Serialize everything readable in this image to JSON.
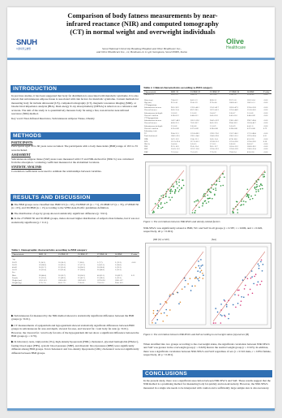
{
  "title": "Comparison of body fatness measurements by near-infrared reactance (NIR) and computed tomography (CT) in normal weight and overweight individuals",
  "affiliations": [
    "Seoul National University Bundang Hospital and Olive Healthcare Inc.,",
    "and Olive Healthcare Inc., 12, Bonhwan-ro 11-gil, Seongnam, Seoul 00000, Korea"
  ],
  "logos": {
    "left": {
      "text": "SNUH",
      "sub": "서울대학교병원"
    },
    "right": {
      "text": "Olive",
      "sub": "Healthcare"
    }
  },
  "colors": {
    "header": "#2f6fb3",
    "bar": "#6da0cf",
    "accent_green": "#3a9a48",
    "accent_blue": "#1d4f9c"
  },
  "sections": {
    "introduction": {
      "heading": "INTRODUCTION",
      "body": "In previous studies, it has been suggested that body fat distribution is associated with metabolic syndrome. It is also known that subcutaneous adipose tissue is associated with risk factors for metabolic syndrome. Current methods for measuring body fat include ultrasound (US), computed tomography (CT), magnetic resonance imaging (MRI), or bioelectrical impedance analysis (BIA). Dual energy X-ray absorptiometry (DEXA) is relied on as a reference and accurate. The aim of the study is to quantitatively measure body fat using a fast, non-invasive near-infrared reactance (NIR) method.",
      "keywords": "Key word: Near-Infrared Reactance, Subcutaneous Adipose Tissue, Obesity"
    },
    "methods": {
      "heading": "METHODS",
      "participants_title": "PARTICIPANTS",
      "participants": "Participants aged 20 to 60 years were recruited. The participants with a body mass index (BMI) range of 18.5 to 35 were included.",
      "assessment_title": "ASSESSMENT",
      "assessment": "Subcutaneous adipose tissue (SAT) areas were measured with CT and NIR-derived fat (NIR-%) was calculated from the absorption / scattering coefficient measured at the abdominal locations.",
      "statistics_title": "STATISTIC ANALYSIS",
      "statistics": "Correlation coefficients were used to estimate the relationships between variables."
    },
    "results": {
      "heading": "RESULTS AND DISCUSSION",
      "bullet1": "The BMI groups were classified into BMI<23 (n = 63), 23≤BMI<25 (n = 71), 25≤BMI<27 (n = 70), 27≤BMI<30 (n = 65), and 30≤BMI (n = 15) according to the WHO Asia-Pacific guidelines definition.",
      "bullet2": "The distribution of age by group showed statistically significant difference (p <0.01).",
      "bullet3": "In the 27≤BMI<30 and 30≤BMI groups, males showed higher distribution of subjects than females, but it was not statistically significant (p > 0.11).",
      "table1_caption": "Table 1. Demographic characteristics according to BMI category",
      "bullet4": "Subcutaneous fat measured by the NIR method showed a statistically significant difference between the BMI groups (p <0.01).",
      "bullet5": "CT measurements of epigastrium and hypogastrium showed statistically significant differences between BMI groups in subcutaneous fat area and depth, visceral fat area, and visceral fat / total body fat ratio (p <0.01). However, the visceral fat / total body fat ratio of the hypogastrium did not show a significant difference between the BMI groups (p = 0.79).",
      "bullet6": "In laboratory tests, triglyceride (TG), high-density lipoprotein (HDL) cholesterol, glycated hemoglobin (HbA1c), fasting blood sugar (FBS), systolic blood pressure (SBP), and diastolic blood pressure (DBP) were significantly different among BMI groups. Total cholesterol and low-density lipoprotein (LDL) cholesterol were not significantly different between BMI groups."
    },
    "right": {
      "table2_caption": "Table 2. Clinical characteristics according to BMI category",
      "fig1_caption": "Figure 1. The correlations between NIR-SFA% and obesity-related factors",
      "fig1_text": "NIR-SFA% was significantly related to BMI, WC and SAT in all groups (r = 0.587, r = 0.606, and r = 0.626, respectively, all p < 0.001).",
      "fig2_caption": "Figure 2. The correlation between NIR-SFA% and SAT according to overweight status (A) and sex (B)",
      "fig2_text": "When stratified into two groups according to the overweight status, the significant correlation between NIR-SFA% and SAT was greater in the overweight group (r = 0.629) than in the normal weight group (r = 0.325). In addition, there was a significant correlation between NIR-SFA% and SAT regardless of sex (r = 0.516 male, r = 0.854 female, respectively, all p < 0.001).",
      "panel_a_title": "[NIR (%) vs SAT]",
      "panel_b_title": "[Sex]",
      "legend_a": [
        "Normal weight",
        "Overweight"
      ],
      "legend_b": [
        "Male",
        "Female"
      ]
    },
    "conclusions": {
      "heading": "CONCLUSIONS",
      "body": "In the present study, there was a significant association between NIR-SFA% and SAT. These results suggest that the NIR method is a promising method for measuring body fat quickly and non-invasively. However, the NIR-SFA% measured in a single site needs to be interpreted with caution and a sufficiently large sample size is also necessary."
    }
  },
  "table1": {
    "headers": [
      "Characteristic",
      "BMI <23",
      "23≤BMI<25",
      "25≤BMI<27",
      "27≤BMI<30",
      "30≤BMI",
      "P-value"
    ],
    "rows": [
      [
        "N",
        "63",
        "71",
        "70",
        "65",
        "15",
        ""
      ],
      [
        "Age",
        "",
        "",
        "",
        "",
        "",
        ""
      ],
      [
        "  20-29",
        "9 (14.3)",
        "10 (14.1)",
        "7 (10.0)",
        "5 (7.7)",
        "2 (13.3)",
        "<0.01"
      ],
      [
        "  30-39",
        "18 (28.6)",
        "16 (22.5)",
        "12 (17.1)",
        "14 (21.5)",
        "3 (20.0)",
        ""
      ],
      [
        "  40-49",
        "20 (31.7)",
        "22 (31.0)",
        "24 (34.3)",
        "20 (30.8)",
        "5 (33.3)",
        ""
      ],
      [
        "  50-59",
        "16 (25.4)",
        "23 (32.4)",
        "27 (38.6)",
        "26 (40.0)",
        "5 (33.3)",
        ""
      ],
      [
        "Sex",
        "",
        "",
        "",
        "",
        "",
        ""
      ],
      [
        "  Male",
        "28 (44.4)",
        "36 (50.7)",
        "38 (54.3)",
        "40 (61.5)",
        "10 (66.7)",
        "0.11"
      ],
      [
        "  Female",
        "35 (55.6)",
        "35 (49.3)",
        "32 (45.7)",
        "25 (38.5)",
        "5 (33.3)",
        ""
      ],
      [
        "Height (cm)",
        "165.2±8.1",
        "166.0±8.6",
        "166.9±8.3",
        "167.8±9.0",
        "168.1±8.7",
        ""
      ],
      [
        "Weight (kg)",
        "57.3±7.0",
        "66.2±7.9",
        "72.0±8.1",
        "79.5±9.2",
        "90.4±10.3",
        ""
      ]
    ]
  },
  "table2": {
    "headers": [
      "Characteristic",
      "BMI <23",
      "23≤BMI<25",
      "25≤BMI<27",
      "27≤BMI<30",
      "30≤BMI",
      "P-value"
    ],
    "rows": [
      [
        "NIR-SFA %",
        "20.1±5.3",
        "24.6±5.1",
        "26.7±4.9",
        "29.0±5.0",
        "31.8±4.6",
        "<0.01"
      ],
      [
        "",
        "",
        "",
        "",
        "",
        "",
        ""
      ],
      [
        "Waist (cm)",
        "76.4±6.2",
        "84.1±5.3",
        "88.6±5.1",
        "93.7±5.8",
        "101.2±6.4",
        "<0.01"
      ],
      [
        "Hip (cm)",
        "91.2±4.1",
        "95.0±3.9",
        "97.6±4.0",
        "100.8±4.3",
        "106.3±5.1",
        "<0.01"
      ],
      [
        "CT Epigastrium",
        "",
        "",
        "",
        "",
        "",
        ""
      ],
      [
        "Subcutaneous fat area",
        "98.1±36.2",
        "133.5±40.1",
        "155.2±42.7",
        "183.6±47.3",
        "232.4±55.8",
        "<0.01"
      ],
      [
        "Visceral fat area",
        "60.2±31.4",
        "89.7±38.5",
        "107.3±41.2",
        "125.6±44.9",
        "151.8±50.3",
        "<0.01"
      ],
      [
        "Subcutaneous fat depth",
        "1.6±0.6",
        "2.1±0.6",
        "2.4±0.7",
        "2.8±0.7",
        "3.5±0.8",
        "<0.01"
      ],
      [
        "Visceral / total fat",
        "0.38±0.12",
        "0.40±0.11",
        "0.41±0.10",
        "0.41±0.10",
        "0.40±0.09",
        "<0.01"
      ],
      [
        "CT Hypogastrium",
        "",
        "",
        "",
        "",
        "",
        ""
      ],
      [
        "Subcutaneous fat area",
        "142.7±48.3",
        "181.2±52.6",
        "204.5±55.9",
        "238.1±60.2",
        "296.7±68.4",
        "<0.01"
      ],
      [
        "Visceral fat area",
        "48.6±25.1",
        "70.3±30.7",
        "84.1±33.5",
        "99.4±36.2",
        "118.0±40.7",
        "<0.01"
      ],
      [
        "Subcutaneous fat depth",
        "2.2±0.8",
        "2.8±0.8",
        "3.1±0.9",
        "3.6±0.9",
        "4.4±1.0",
        "<0.01"
      ],
      [
        "Visceral / total fat",
        "0.25±0.09",
        "0.27±0.09",
        "0.28±0.08",
        "0.28±0.08",
        "0.27±0.08",
        "0.79"
      ],
      [
        "Laboratory tests",
        "",
        "",
        "",
        "",
        "",
        ""
      ],
      [
        "TG",
        "96.4±52.1",
        "121.8±68.3",
        "139.2±75.6",
        "152.7±80.1",
        "171.3±88.4",
        "<0.01"
      ],
      [
        "Total cholesterol",
        "188.3±32.5",
        "192.1±34.0",
        "194.6±33.8",
        "196.2±35.1",
        "197.0±36.4",
        "0.21"
      ],
      [
        "HDL",
        "58.7±13.2",
        "53.4±12.1",
        "50.2±11.4",
        "47.8±10.6",
        "45.1±9.8",
        "<0.01"
      ],
      [
        "LDL",
        "112.5±29.4",
        "117.3±30.1",
        "119.8±31.2",
        "121.0±32.0",
        "122.4±33.6",
        "0.18"
      ],
      [
        "HbA1c",
        "5.4±0.4",
        "5.6±0.5",
        "5.7±0.5",
        "5.8±0.6",
        "6.0±0.7",
        "<0.01"
      ],
      [
        "FBS",
        "91.2±10.3",
        "95.6±12.4",
        "98.1±13.7",
        "101.4±15.2",
        "106.8±18.1",
        "<0.01"
      ],
      [
        "SBP",
        "114.3±11.2",
        "119.7±12.0",
        "122.4±12.3",
        "125.8±12.9",
        "130.6±13.4",
        "<0.01"
      ],
      [
        "DBP",
        "71.2±8.4",
        "75.1±8.9",
        "77.3±9.1",
        "79.6±9.4",
        "83.2±9.8",
        "<0.01"
      ]
    ]
  }
}
